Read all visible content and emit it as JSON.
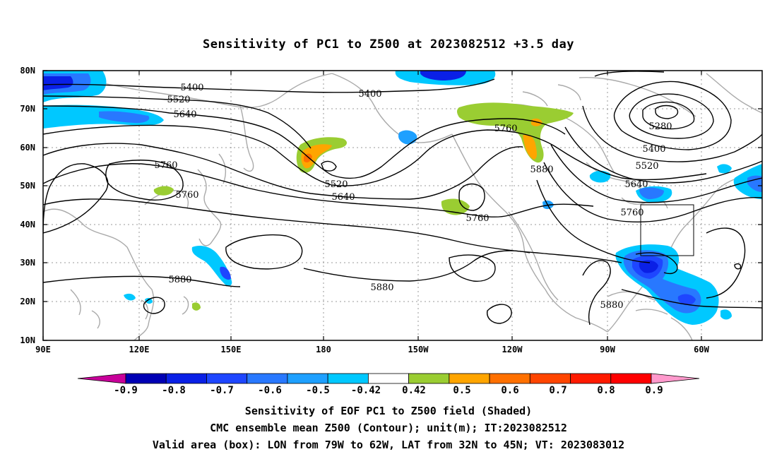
{
  "title": "Sensitivity of PC1 to Z500 at 2023082512 +3.5 day",
  "lat_ticks": [
    "80N",
    "70N",
    "60N",
    "50N",
    "40N",
    "30N",
    "20N",
    "10N"
  ],
  "lon_ticks": [
    "90E",
    "120E",
    "150E",
    "180",
    "150W",
    "120W",
    "90W",
    "60W"
  ],
  "contour_labels": [
    "5400",
    "5520",
    "5640",
    "5400",
    "5760",
    "5760",
    "5520",
    "5640",
    "5760",
    "5760",
    "5880",
    "5280",
    "5400",
    "5520",
    "5640",
    "5760",
    "5880",
    "5880",
    "5880"
  ],
  "colorbar": {
    "tick_labels": [
      "-0.9",
      "-0.8",
      "-0.7",
      "-0.6",
      "-0.5",
      "-0.42",
      "0.42",
      "0.5",
      "0.6",
      "0.7",
      "0.8",
      "0.9"
    ],
    "colors": [
      "#c8009a",
      "#0000b4",
      "#0a20e6",
      "#1e46ff",
      "#2878ff",
      "#1ea0ff",
      "#00c8ff",
      "#ffffff",
      "#9acd32",
      "#ffa500",
      "#ff7000",
      "#ff4500",
      "#ff1a00",
      "#ff0000",
      "#ff99cc"
    ]
  },
  "caption": {
    "line1": "Sensitivity of EOF PC1 to Z500 field (Shaded)",
    "line2": "CMC ensemble mean Z500 (Contour); unit(m); IT:2023082512",
    "line3": "Valid area (box): LON from 79W to 62W, LAT from 32N to 45N; VT: 2023083012"
  }
}
